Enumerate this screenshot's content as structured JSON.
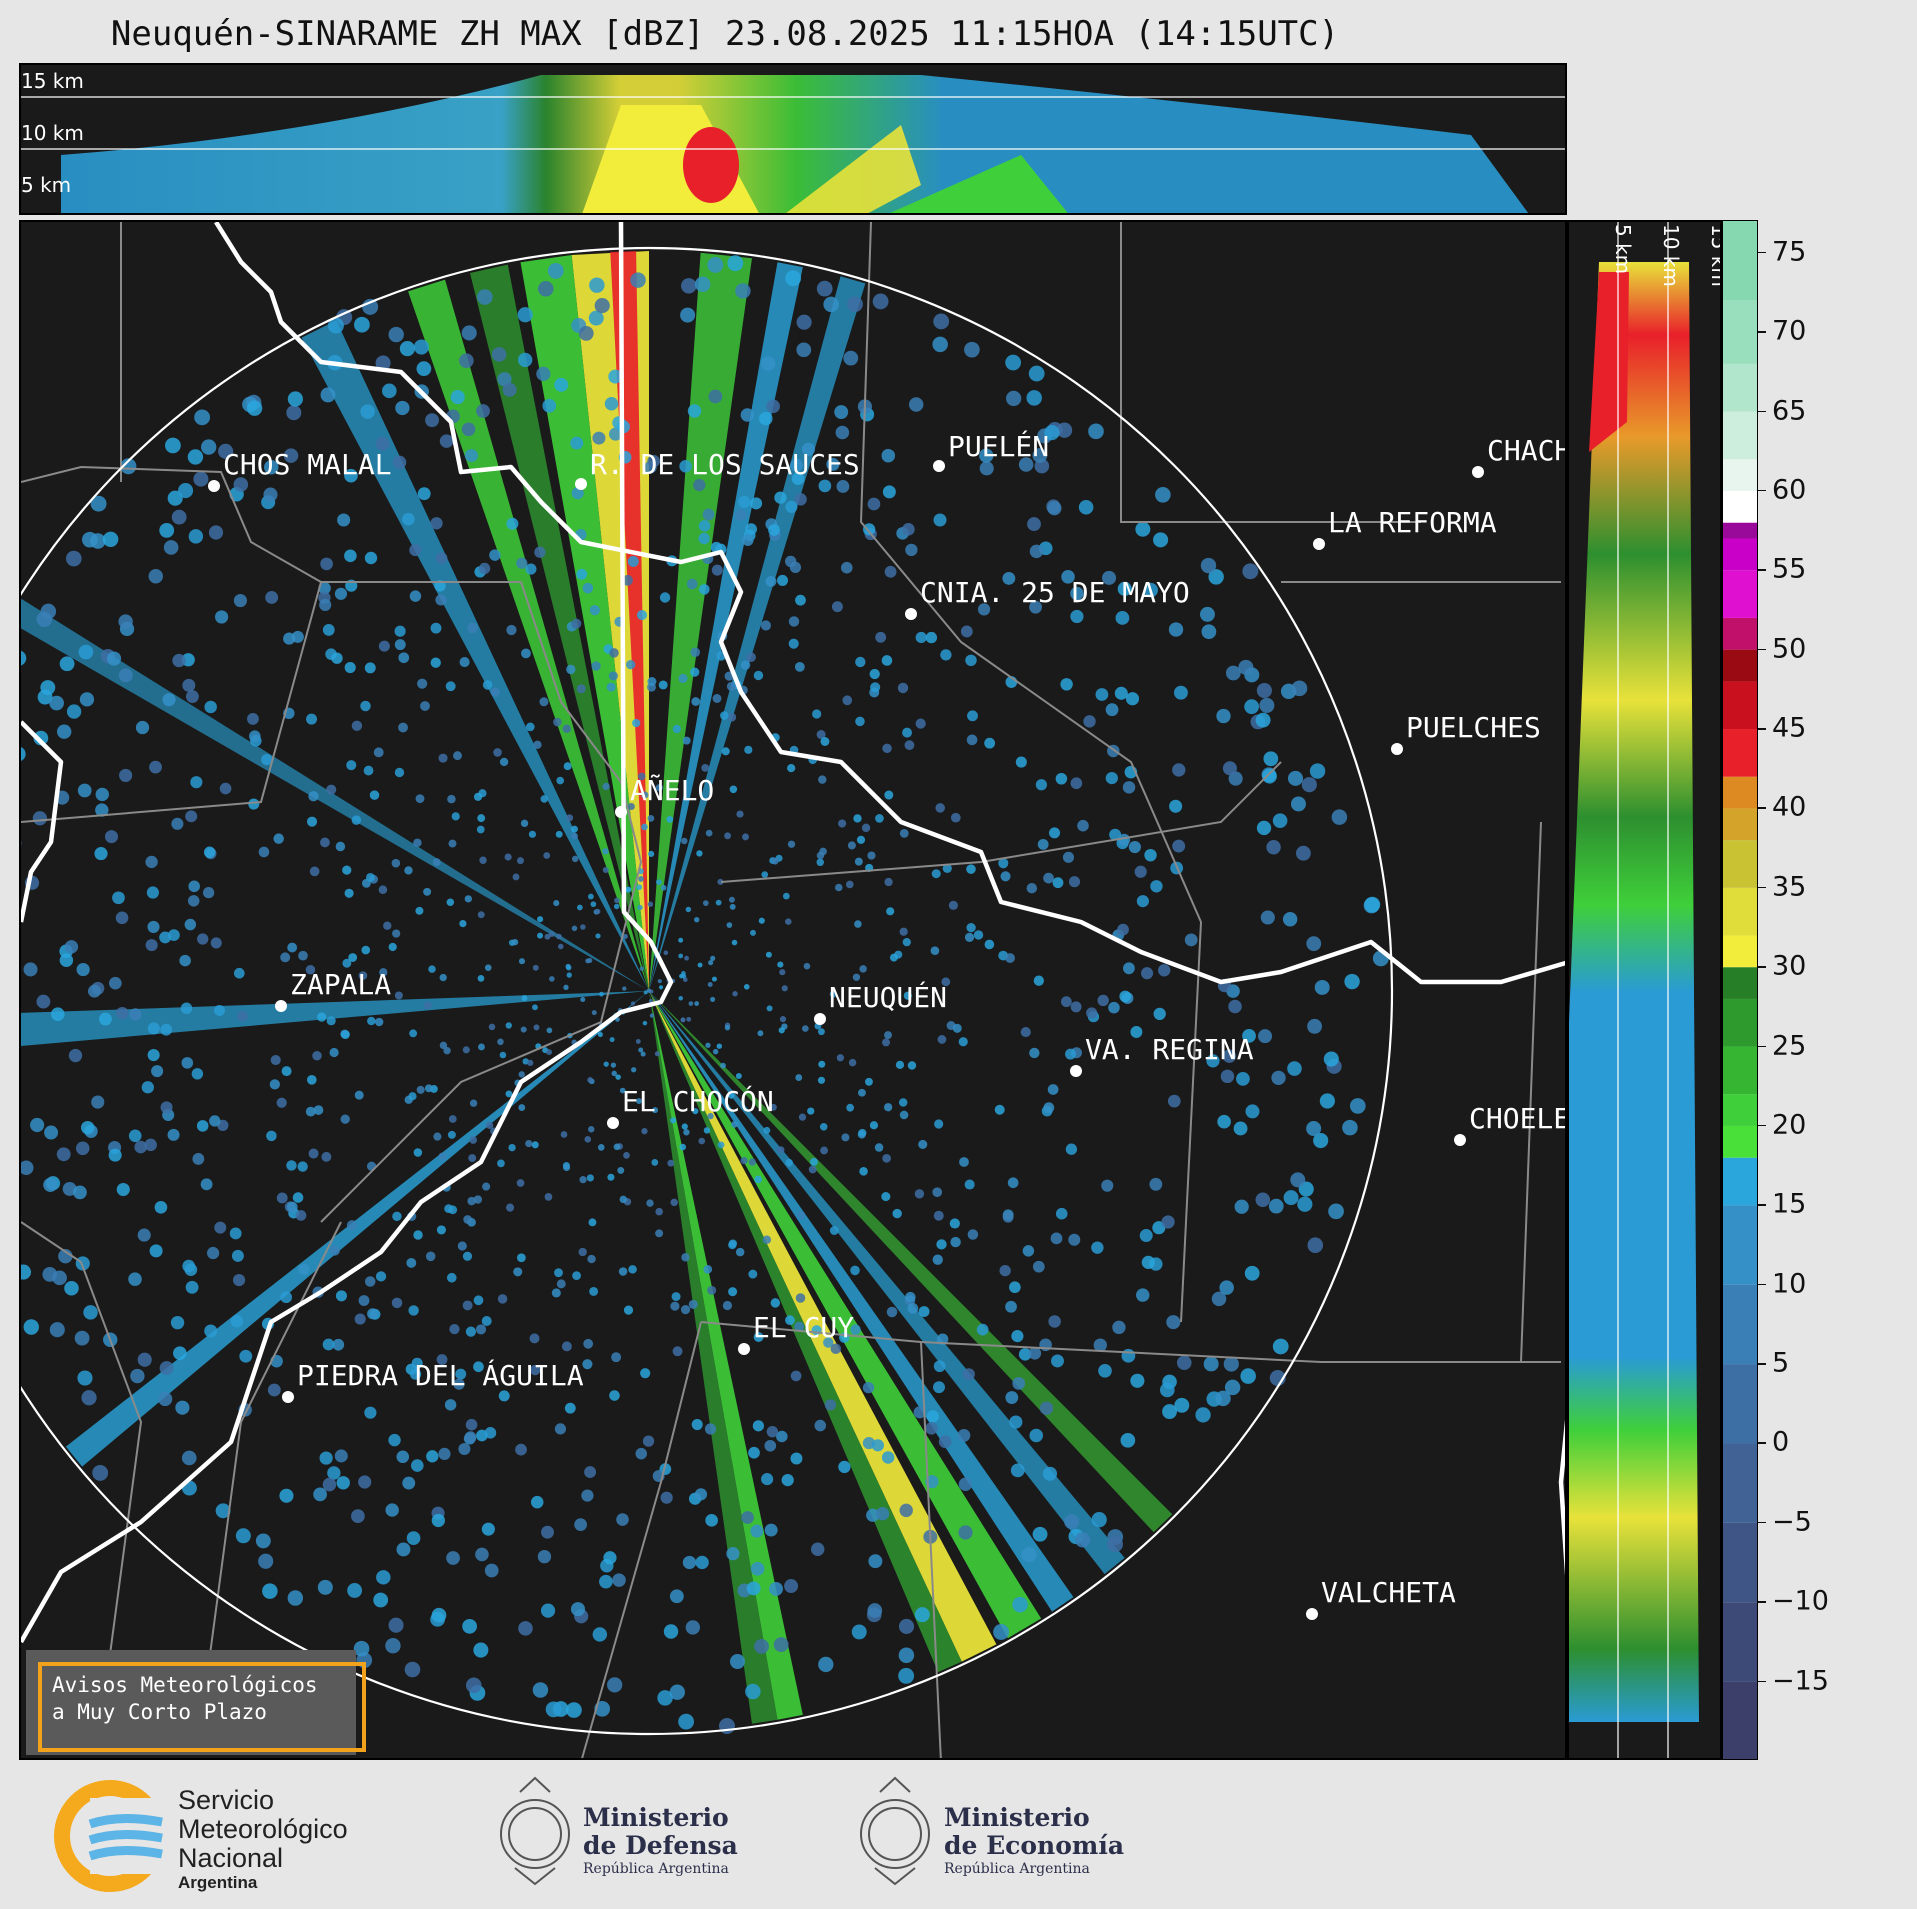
{
  "title": "Neuquén-SINARAME ZH MAX [dBZ] 23.08.2025 11:15HOA (14:15UTC)",
  "top_panel": {
    "altitude_labels": [
      "15 km",
      "10 km",
      "5 km"
    ]
  },
  "right_panel": {
    "altitude_labels": [
      "5 km",
      "10 km",
      "15 km"
    ]
  },
  "map": {
    "range_ring": "white",
    "cities": [
      {
        "name": "CHOS MALAL"
      },
      {
        "name": "R. DE LOS SAUCES"
      },
      {
        "name": "PUELÉN"
      },
      {
        "name": "CHACH"
      },
      {
        "name": "LA REFORMA"
      },
      {
        "name": "CNIA. 25 DE MAYO"
      },
      {
        "name": "PUELCHES"
      },
      {
        "name": "AÑELO"
      },
      {
        "name": "ZAPALA"
      },
      {
        "name": "NEUQUÉN"
      },
      {
        "name": "VA. REGINA"
      },
      {
        "name": "EL CHOCÓN"
      },
      {
        "name": "CHOELE"
      },
      {
        "name": "EL CUY"
      },
      {
        "name": "PIEDRA DEL ÁGUILA"
      },
      {
        "name": "VALCHETA"
      }
    ]
  },
  "colorbar": {
    "unit": "dBZ",
    "range": [
      -20,
      77
    ],
    "ticks": [
      "75",
      "70",
      "65",
      "60",
      "55",
      "50",
      "45",
      "40",
      "35",
      "30",
      "25",
      "20",
      "15",
      "10",
      "5",
      "0",
      "−5",
      "−10",
      "−15"
    ],
    "tick_values": [
      75,
      70,
      65,
      60,
      55,
      50,
      45,
      40,
      35,
      30,
      25,
      20,
      15,
      10,
      5,
      0,
      -5,
      -10,
      -15
    ]
  },
  "badge": {
    "line1": "Avisos Meteorológicos",
    "line2": "a Muy Corto Plazo"
  },
  "footer": {
    "smn": {
      "line1": "Servicio",
      "line2": "Meteorológico",
      "line3": "Nacional",
      "line4": "Argentina"
    },
    "defensa": {
      "line1": "Ministerio",
      "line2": "de Defensa",
      "line3": "República Argentina"
    },
    "economia": {
      "line1": "Ministerio",
      "line2": "de Economía",
      "line3": "República Argentina"
    }
  }
}
